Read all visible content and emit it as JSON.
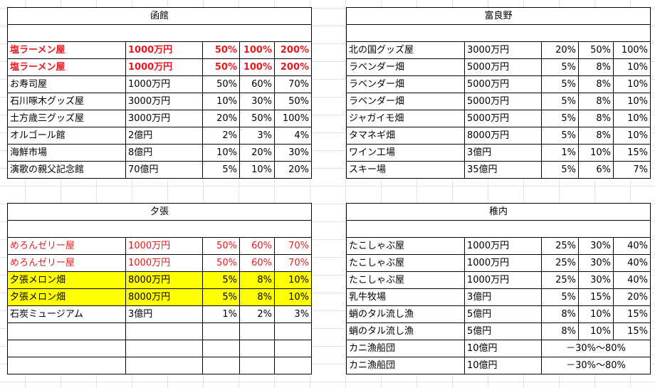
{
  "hakodate": {
    "title": "函館",
    "rows": [
      {
        "name": "塩ラーメン屋",
        "price": "1000万円",
        "p1": "50%",
        "p2": "100%",
        "p3": "200%"
      },
      {
        "name": "塩ラーメン屋",
        "price": "1000万円",
        "p1": "50%",
        "p2": "100%",
        "p3": "200%"
      },
      {
        "name": "お寿司屋",
        "price": "1000万円",
        "p1": "50%",
        "p2": "60%",
        "p3": "70%"
      },
      {
        "name": "石川啄木グッズ屋",
        "price": "3000万円",
        "p1": "10%",
        "p2": "30%",
        "p3": "50%"
      },
      {
        "name": "土方歳三グッズ屋",
        "price": "3000万円",
        "p1": "20%",
        "p2": "50%",
        "p3": "100%"
      },
      {
        "name": "オルゴール館",
        "price": "2億円",
        "p1": "2%",
        "p2": "3%",
        "p3": "4%"
      },
      {
        "name": "海鮮市場",
        "price": "8億円",
        "p1": "10%",
        "p2": "20%",
        "p3": "30%"
      },
      {
        "name": "演歌の親父記念館",
        "price": "70億円",
        "p1": "5%",
        "p2": "10%",
        "p3": "20%"
      }
    ]
  },
  "furano": {
    "title": "富良野",
    "rows": [
      {
        "name": "北の国グッズ屋",
        "price": "3000万円",
        "p1": "20%",
        "p2": "50%",
        "p3": "100%"
      },
      {
        "name": "ラベンダー畑",
        "price": "5000万円",
        "p1": "5%",
        "p2": "8%",
        "p3": "10%"
      },
      {
        "name": "ラベンダー畑",
        "price": "5000万円",
        "p1": "5%",
        "p2": "8%",
        "p3": "10%"
      },
      {
        "name": "ラベンダー畑",
        "price": "5000万円",
        "p1": "5%",
        "p2": "8%",
        "p3": "10%"
      },
      {
        "name": "ジャガイモ畑",
        "price": "5000万円",
        "p1": "5%",
        "p2": "8%",
        "p3": "10%"
      },
      {
        "name": "タマネギ畑",
        "price": "8000万円",
        "p1": "5%",
        "p2": "8%",
        "p3": "10%"
      },
      {
        "name": "ワイン工場",
        "price": "3億円",
        "p1": "1%",
        "p2": "10%",
        "p3": "15%"
      },
      {
        "name": "スキー場",
        "price": "35億円",
        "p1": "5%",
        "p2": "6%",
        "p3": "7%"
      }
    ]
  },
  "yubari": {
    "title": "夕張",
    "rows": [
      {
        "name": "めろんゼリー屋",
        "price": "1000万円",
        "p1": "50%",
        "p2": "60%",
        "p3": "70%"
      },
      {
        "name": "めろんゼリー屋",
        "price": "1000万円",
        "p1": "50%",
        "p2": "60%",
        "p3": "70%"
      },
      {
        "name": "夕張メロン畑",
        "price": "8000万円",
        "p1": "5%",
        "p2": "8%",
        "p3": "10%"
      },
      {
        "name": "夕張メロン畑",
        "price": "8000万円",
        "p1": "5%",
        "p2": "8%",
        "p3": "10%"
      },
      {
        "name": "石炭ミュージアム",
        "price": "3億円",
        "p1": "1%",
        "p2": "2%",
        "p3": "3%"
      }
    ]
  },
  "wakkanai": {
    "title": "稚内",
    "rows": [
      {
        "name": "たこしゃぶ屋",
        "price": "1000万円",
        "p1": "25%",
        "p2": "30%",
        "p3": "40%"
      },
      {
        "name": "たこしゃぶ屋",
        "price": "1000万円",
        "p1": "25%",
        "p2": "30%",
        "p3": "40%"
      },
      {
        "name": "たこしゃぶ屋",
        "price": "1000万円",
        "p1": "25%",
        "p2": "30%",
        "p3": "40%"
      },
      {
        "name": "乳牛牧場",
        "price": "3億円",
        "p1": "5%",
        "p2": "15%",
        "p3": "20%"
      },
      {
        "name": "蛸のタル流し漁",
        "price": "5億円",
        "p1": "8%",
        "p2": "10%",
        "p3": "15%"
      },
      {
        "name": "蛸のタル流し漁",
        "price": "5億円",
        "p1": "8%",
        "p2": "10%",
        "p3": "15%"
      },
      {
        "name": "カニ漁船団",
        "price": "10億円",
        "range": "－30%～80%"
      },
      {
        "name": "カニ漁船団",
        "price": "10億円",
        "range": "－30%～80%"
      }
    ]
  },
  "colors": {
    "highlight_red": "#e8191c",
    "highlight_yellow": "#ffff00"
  }
}
